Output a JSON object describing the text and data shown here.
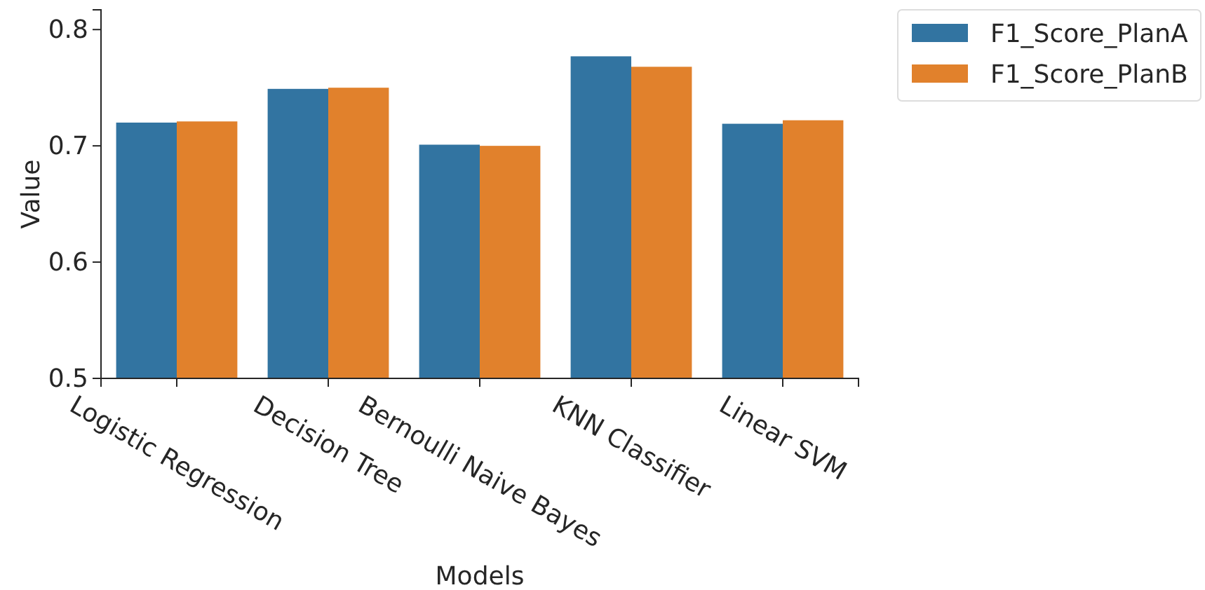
{
  "chart_data": {
    "type": "bar",
    "xlabel": "Models",
    "ylabel": "Value",
    "categories": [
      "Logistic Regression",
      "Decision Tree",
      "Bernoulli Naive Bayes",
      "KNN Classifier",
      "Linear SVM"
    ],
    "series": [
      {
        "name": "F1_Score_PlanA",
        "color": "#3274a1",
        "values": [
          0.72,
          0.749,
          0.701,
          0.777,
          0.719
        ]
      },
      {
        "name": "F1_Score_PlanB",
        "color": "#e1812c",
        "values": [
          0.721,
          0.75,
          0.7,
          0.768,
          0.722
        ]
      }
    ],
    "ylim": [
      0.5,
      0.817
    ],
    "yticks": [
      0.5,
      0.6,
      0.7,
      0.8
    ],
    "grid": false,
    "legend": "top right"
  }
}
